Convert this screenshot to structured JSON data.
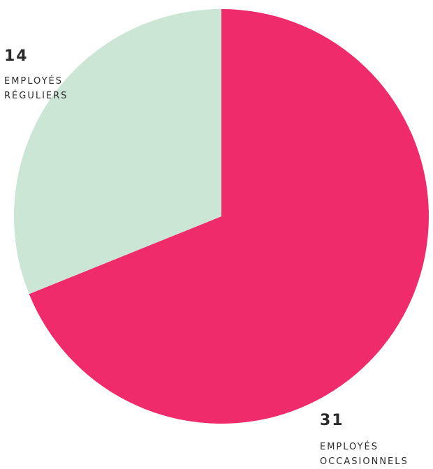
{
  "chart_data": {
    "type": "pie",
    "slices": [
      {
        "value": 14,
        "value_label": "14",
        "label_line1": "EMPLOYÉS",
        "label_line2": "RÉGULIERS",
        "color": "#cce6d6"
      },
      {
        "value": 31,
        "value_label": "31",
        "label_line1": "EMPLOYÉS",
        "label_line2": "OCCASIONNELS",
        "color": "#ef2b6c"
      }
    ],
    "start_angle_deg": 0,
    "direction": "clockwise",
    "legend": "none",
    "title": ""
  }
}
